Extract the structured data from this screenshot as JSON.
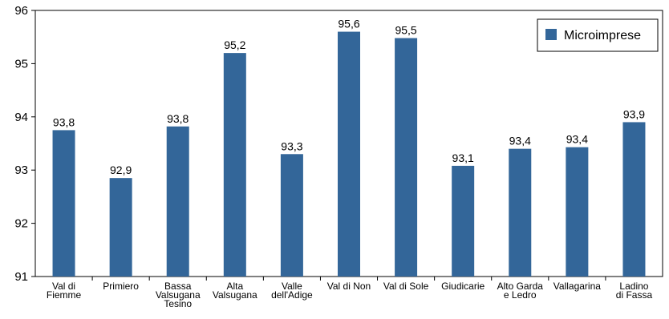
{
  "chart_data": {
    "type": "bar",
    "categories": [
      [
        "Val di",
        "Fiemme"
      ],
      [
        "Primiero"
      ],
      [
        "Bassa",
        "Valsugana",
        "Tesino"
      ],
      [
        "Alta",
        "Valsugana"
      ],
      [
        "Valle",
        "dell'Adige"
      ],
      [
        "Val di Non"
      ],
      [
        "Val di Sole"
      ],
      [
        "Giudicarie"
      ],
      [
        "Alto Garda",
        "e Ledro"
      ],
      [
        "Vallagarina"
      ],
      [
        "Ladino",
        "di Fassa"
      ]
    ],
    "series": [
      {
        "name": "Microimprese",
        "color": "#336699",
        "values": [
          93.75,
          92.85,
          93.82,
          95.2,
          93.3,
          95.6,
          95.48,
          93.08,
          93.4,
          93.43,
          93.9
        ],
        "labels": [
          "93,8",
          "92,9",
          "93,8",
          "95,2",
          "93,3",
          "95,6",
          "95,5",
          "93,1",
          "93,4",
          "93,4",
          "93,9"
        ]
      }
    ],
    "ylim": [
      91,
      96
    ],
    "yticks": [
      91,
      92,
      93,
      94,
      95,
      96
    ],
    "ytick_labels": [
      "91",
      "92",
      "93",
      "94",
      "95",
      "96"
    ],
    "grid": false,
    "legend": "top-right",
    "title": "",
    "xlabel": "",
    "ylabel": ""
  }
}
